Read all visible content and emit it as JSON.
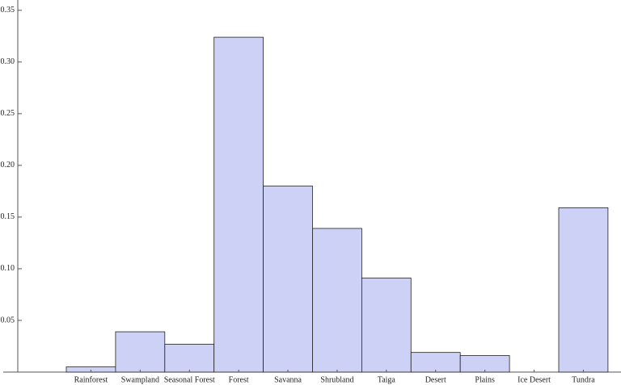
{
  "chart_data": {
    "type": "bar",
    "categories": [
      "Rainforest",
      "Swampland",
      "Seasonal Forest",
      "Forest",
      "Savanna",
      "Shrubland",
      "Taiga",
      "Desert",
      "Plains",
      "Ice Desert",
      "Tundra"
    ],
    "values": [
      0.005,
      0.039,
      0.027,
      0.324,
      0.18,
      0.139,
      0.091,
      0.019,
      0.016,
      0,
      0.159
    ],
    "color": "#ccd1f5",
    "ylim": [
      0,
      0.36
    ],
    "yticks": [
      0.05,
      {
        "value": 0.1,
        "label": "0.10"
      },
      0.15,
      {
        "value": 0.2,
        "label": "0.20"
      },
      0.25,
      {
        "value": 0.3,
        "label": "0.30"
      },
      0.35
    ],
    "grid": false
  }
}
